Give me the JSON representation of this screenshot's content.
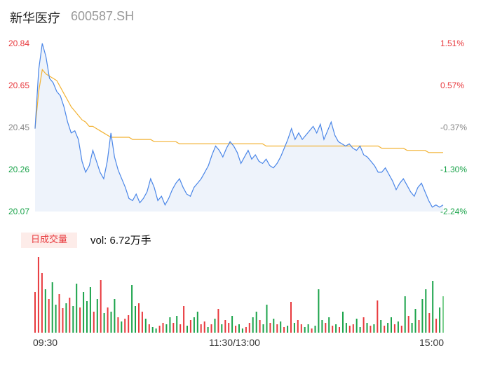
{
  "header": {
    "name": "新华医疗",
    "code": "600587.SH"
  },
  "colors": {
    "up": "#e8393d",
    "down": "#1aa34a",
    "flat": "#888888",
    "price_line": "#4a86e8",
    "avg_line": "#f2b233",
    "area": "#eef3fb"
  },
  "y_left_labels": [
    "20.84",
    "20.65",
    "20.45",
    "20.26",
    "20.07"
  ],
  "y_right_labels": [
    "1.51%",
    "0.57%",
    "-0.37%",
    "-1.30%",
    "-2.24%"
  ],
  "volume": {
    "tab_label": "日成交量",
    "text": "vol: 6.72万手"
  },
  "x_labels": [
    "09:30",
    "11:30/13:00",
    "15:00"
  ],
  "chart_data": {
    "type": "line",
    "ylim": [
      20.07,
      20.84
    ],
    "pct_range": [
      "1.51%",
      "-2.24%"
    ],
    "x_ticks": [
      "09:30",
      "11:30/13:00",
      "15:00"
    ],
    "series": [
      {
        "values": [
          20.45,
          20.72,
          20.84,
          20.78,
          20.68,
          20.66,
          20.62,
          20.6,
          20.55,
          20.48,
          20.43,
          20.44,
          20.4,
          20.3,
          20.25,
          20.28,
          20.35,
          20.3,
          20.25,
          20.22,
          20.3,
          20.43,
          20.32,
          20.26,
          20.22,
          20.18,
          20.13,
          20.12,
          20.15,
          20.11,
          20.13,
          20.16,
          20.22,
          20.18,
          20.12,
          20.14,
          20.1,
          20.13,
          20.17,
          20.2,
          20.22,
          20.18,
          20.15,
          20.14,
          20.18,
          20.2,
          20.22,
          20.25,
          20.28,
          20.33,
          20.37,
          20.35,
          20.32,
          20.36,
          20.39,
          20.37,
          20.34,
          20.29,
          20.32,
          20.35,
          20.31,
          20.33,
          20.3,
          20.29,
          20.31,
          20.28,
          20.27,
          20.29,
          20.32,
          20.36,
          20.4,
          20.45,
          20.4,
          20.43,
          20.4,
          20.42,
          20.44,
          20.46,
          20.43,
          20.47,
          20.4,
          20.44,
          20.48,
          20.42,
          20.39,
          20.38,
          20.37,
          20.38,
          20.36,
          20.35,
          20.37,
          20.33,
          20.32,
          20.3,
          20.28,
          20.25,
          20.25,
          20.27,
          20.24,
          20.21,
          20.17,
          20.2,
          20.22,
          20.19,
          20.16,
          20.14,
          20.18,
          20.2,
          20.16,
          20.12,
          20.09,
          20.1,
          20.09,
          20.1
        ]
      },
      {
        "values": [
          20.45,
          20.62,
          20.72,
          20.7,
          20.69,
          20.68,
          20.67,
          20.64,
          20.61,
          20.58,
          20.55,
          20.53,
          20.51,
          20.49,
          20.48,
          20.46,
          20.46,
          20.45,
          20.44,
          20.43,
          20.42,
          20.41,
          20.41,
          20.41,
          20.41,
          20.41,
          20.41,
          20.4,
          20.4,
          20.4,
          20.4,
          20.4,
          20.4,
          20.39,
          20.39,
          20.39,
          20.39,
          20.39,
          20.39,
          20.39,
          20.38,
          20.38,
          20.38,
          20.38,
          20.38,
          20.38,
          20.38,
          20.38,
          20.38,
          20.38,
          20.38,
          20.38,
          20.38,
          20.38,
          20.38,
          20.38,
          20.38,
          20.38,
          20.38,
          20.38,
          20.38,
          20.38,
          20.38,
          20.38,
          20.37,
          20.37,
          20.37,
          20.37,
          20.37,
          20.37,
          20.37,
          20.37,
          20.37,
          20.37,
          20.37,
          20.37,
          20.37,
          20.37,
          20.37,
          20.37,
          20.37,
          20.37,
          20.37,
          20.37,
          20.37,
          20.37,
          20.37,
          20.37,
          20.37,
          20.37,
          20.37,
          20.37,
          20.37,
          20.37,
          20.37,
          20.37,
          20.36,
          20.36,
          20.36,
          20.36,
          20.36,
          20.36,
          20.36,
          20.35,
          20.35,
          20.35,
          20.35,
          20.35,
          20.35,
          20.34,
          20.34,
          20.34,
          20.34,
          20.34
        ]
      }
    ],
    "volume_bars": [
      {
        "v": 58,
        "c": "up"
      },
      {
        "v": 108,
        "c": "up"
      },
      {
        "v": 85,
        "c": "up"
      },
      {
        "v": 62,
        "c": "down"
      },
      {
        "v": 48,
        "c": "up"
      },
      {
        "v": 72,
        "c": "down"
      },
      {
        "v": 40,
        "c": "down"
      },
      {
        "v": 55,
        "c": "up"
      },
      {
        "v": 35,
        "c": "up"
      },
      {
        "v": 42,
        "c": "down"
      },
      {
        "v": 50,
        "c": "up"
      },
      {
        "v": 38,
        "c": "down"
      },
      {
        "v": 70,
        "c": "down"
      },
      {
        "v": 36,
        "c": "up"
      },
      {
        "v": 58,
        "c": "down"
      },
      {
        "v": 45,
        "c": "down"
      },
      {
        "v": 65,
        "c": "down"
      },
      {
        "v": 30,
        "c": "up"
      },
      {
        "v": 48,
        "c": "down"
      },
      {
        "v": 75,
        "c": "up"
      },
      {
        "v": 28,
        "c": "down"
      },
      {
        "v": 36,
        "c": "up"
      },
      {
        "v": 30,
        "c": "down"
      },
      {
        "v": 48,
        "c": "down"
      },
      {
        "v": 22,
        "c": "up"
      },
      {
        "v": 16,
        "c": "down"
      },
      {
        "v": 20,
        "c": "up"
      },
      {
        "v": 25,
        "c": "up"
      },
      {
        "v": 68,
        "c": "down"
      },
      {
        "v": 38,
        "c": "down"
      },
      {
        "v": 42,
        "c": "up"
      },
      {
        "v": 30,
        "c": "up"
      },
      {
        "v": 20,
        "c": "down"
      },
      {
        "v": 12,
        "c": "up"
      },
      {
        "v": 8,
        "c": "down"
      },
      {
        "v": 6,
        "c": "down"
      },
      {
        "v": 10,
        "c": "up"
      },
      {
        "v": 14,
        "c": "up"
      },
      {
        "v": 12,
        "c": "down"
      },
      {
        "v": 22,
        "c": "down"
      },
      {
        "v": 14,
        "c": "up"
      },
      {
        "v": 24,
        "c": "down"
      },
      {
        "v": 12,
        "c": "up"
      },
      {
        "v": 38,
        "c": "up"
      },
      {
        "v": 10,
        "c": "down"
      },
      {
        "v": 18,
        "c": "up"
      },
      {
        "v": 22,
        "c": "down"
      },
      {
        "v": 30,
        "c": "down"
      },
      {
        "v": 12,
        "c": "up"
      },
      {
        "v": 16,
        "c": "up"
      },
      {
        "v": 8,
        "c": "down"
      },
      {
        "v": 12,
        "c": "up"
      },
      {
        "v": 20,
        "c": "down"
      },
      {
        "v": 34,
        "c": "up"
      },
      {
        "v": 12,
        "c": "down"
      },
      {
        "v": 18,
        "c": "up"
      },
      {
        "v": 14,
        "c": "up"
      },
      {
        "v": 24,
        "c": "down"
      },
      {
        "v": 10,
        "c": "up"
      },
      {
        "v": 12,
        "c": "down"
      },
      {
        "v": 6,
        "c": "down"
      },
      {
        "v": 8,
        "c": "up"
      },
      {
        "v": 14,
        "c": "up"
      },
      {
        "v": 22,
        "c": "down"
      },
      {
        "v": 30,
        "c": "down"
      },
      {
        "v": 18,
        "c": "up"
      },
      {
        "v": 12,
        "c": "down"
      },
      {
        "v": 40,
        "c": "down"
      },
      {
        "v": 14,
        "c": "up"
      },
      {
        "v": 20,
        "c": "down"
      },
      {
        "v": 12,
        "c": "up"
      },
      {
        "v": 16,
        "c": "down"
      },
      {
        "v": 8,
        "c": "up"
      },
      {
        "v": 10,
        "c": "down"
      },
      {
        "v": 44,
        "c": "up"
      },
      {
        "v": 14,
        "c": "down"
      },
      {
        "v": 18,
        "c": "up"
      },
      {
        "v": 12,
        "c": "up"
      },
      {
        "v": 8,
        "c": "down"
      },
      {
        "v": 12,
        "c": "down"
      },
      {
        "v": 6,
        "c": "up"
      },
      {
        "v": 10,
        "c": "down"
      },
      {
        "v": 62,
        "c": "down"
      },
      {
        "v": 18,
        "c": "down"
      },
      {
        "v": 14,
        "c": "up"
      },
      {
        "v": 22,
        "c": "down"
      },
      {
        "v": 10,
        "c": "up"
      },
      {
        "v": 12,
        "c": "down"
      },
      {
        "v": 8,
        "c": "up"
      },
      {
        "v": 30,
        "c": "down"
      },
      {
        "v": 14,
        "c": "down"
      },
      {
        "v": 10,
        "c": "up"
      },
      {
        "v": 12,
        "c": "up"
      },
      {
        "v": 20,
        "c": "down"
      },
      {
        "v": 8,
        "c": "down"
      },
      {
        "v": 22,
        "c": "up"
      },
      {
        "v": 14,
        "c": "down"
      },
      {
        "v": 10,
        "c": "up"
      },
      {
        "v": 12,
        "c": "down"
      },
      {
        "v": 46,
        "c": "up"
      },
      {
        "v": 18,
        "c": "down"
      },
      {
        "v": 10,
        "c": "up"
      },
      {
        "v": 14,
        "c": "down"
      },
      {
        "v": 22,
        "c": "down"
      },
      {
        "v": 12,
        "c": "up"
      },
      {
        "v": 16,
        "c": "down"
      },
      {
        "v": 10,
        "c": "up"
      },
      {
        "v": 52,
        "c": "down"
      },
      {
        "v": 24,
        "c": "up"
      },
      {
        "v": 14,
        "c": "down"
      },
      {
        "v": 34,
        "c": "down"
      },
      {
        "v": 18,
        "c": "up"
      },
      {
        "v": 48,
        "c": "down"
      },
      {
        "v": 62,
        "c": "down"
      },
      {
        "v": 28,
        "c": "up"
      },
      {
        "v": 74,
        "c": "down"
      },
      {
        "v": 20,
        "c": "up"
      },
      {
        "v": 36,
        "c": "down"
      },
      {
        "v": 52,
        "c": "flat"
      }
    ]
  }
}
